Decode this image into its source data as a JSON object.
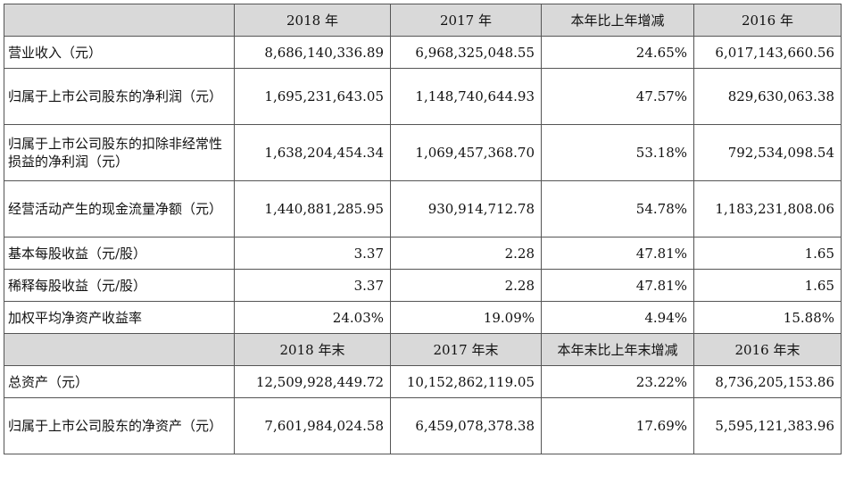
{
  "header_top": {
    "c1": "2018 年",
    "c2": "2017 年",
    "c3": "本年比上年增减",
    "c4": "2016 年"
  },
  "rows_top": [
    {
      "label": "营业收入（元）",
      "v1": "8,686,140,336.89",
      "v2": "6,968,325,048.55",
      "v3": "24.65%",
      "v4": "6,017,143,660.56",
      "tall": false
    },
    {
      "label": "归属于上市公司股东的净利润（元）",
      "v1": "1,695,231,643.05",
      "v2": "1,148,740,644.93",
      "v3": "47.57%",
      "v4": "829,630,063.38",
      "tall": true
    },
    {
      "label": "归属于上市公司股东的扣除非经常性损益的净利润（元）",
      "v1": "1,638,204,454.34",
      "v2": "1,069,457,368.70",
      "v3": "53.18%",
      "v4": "792,534,098.54",
      "tall": true
    },
    {
      "label": "经营活动产生的现金流量净额（元）",
      "v1": "1,440,881,285.95",
      "v2": "930,914,712.78",
      "v3": "54.78%",
      "v4": "1,183,231,808.06",
      "tall": true
    },
    {
      "label": "基本每股收益（元/股）",
      "v1": "3.37",
      "v2": "2.28",
      "v3": "47.81%",
      "v4": "1.65",
      "tall": false
    },
    {
      "label": "稀释每股收益（元/股）",
      "v1": "3.37",
      "v2": "2.28",
      "v3": "47.81%",
      "v4": "1.65",
      "tall": false
    },
    {
      "label": "加权平均净资产收益率",
      "v1": "24.03%",
      "v2": "19.09%",
      "v3": "4.94%",
      "v4": "15.88%",
      "tall": false
    }
  ],
  "header_bottom": {
    "c1": "2018 年末",
    "c2": "2017 年末",
    "c3": "本年末比上年末增减",
    "c4": "2016 年末"
  },
  "rows_bottom": [
    {
      "label": "总资产（元）",
      "v1": "12,509,928,449.72",
      "v2": "10,152,862,119.05",
      "v3": "23.22%",
      "v4": "8,736,205,153.86",
      "tall": false
    },
    {
      "label": "归属于上市公司股东的净资产（元）",
      "v1": "7,601,984,024.58",
      "v2": "6,459,078,378.38",
      "v3": "17.69%",
      "v4": "5,595,121,383.96",
      "tall": true
    }
  ]
}
